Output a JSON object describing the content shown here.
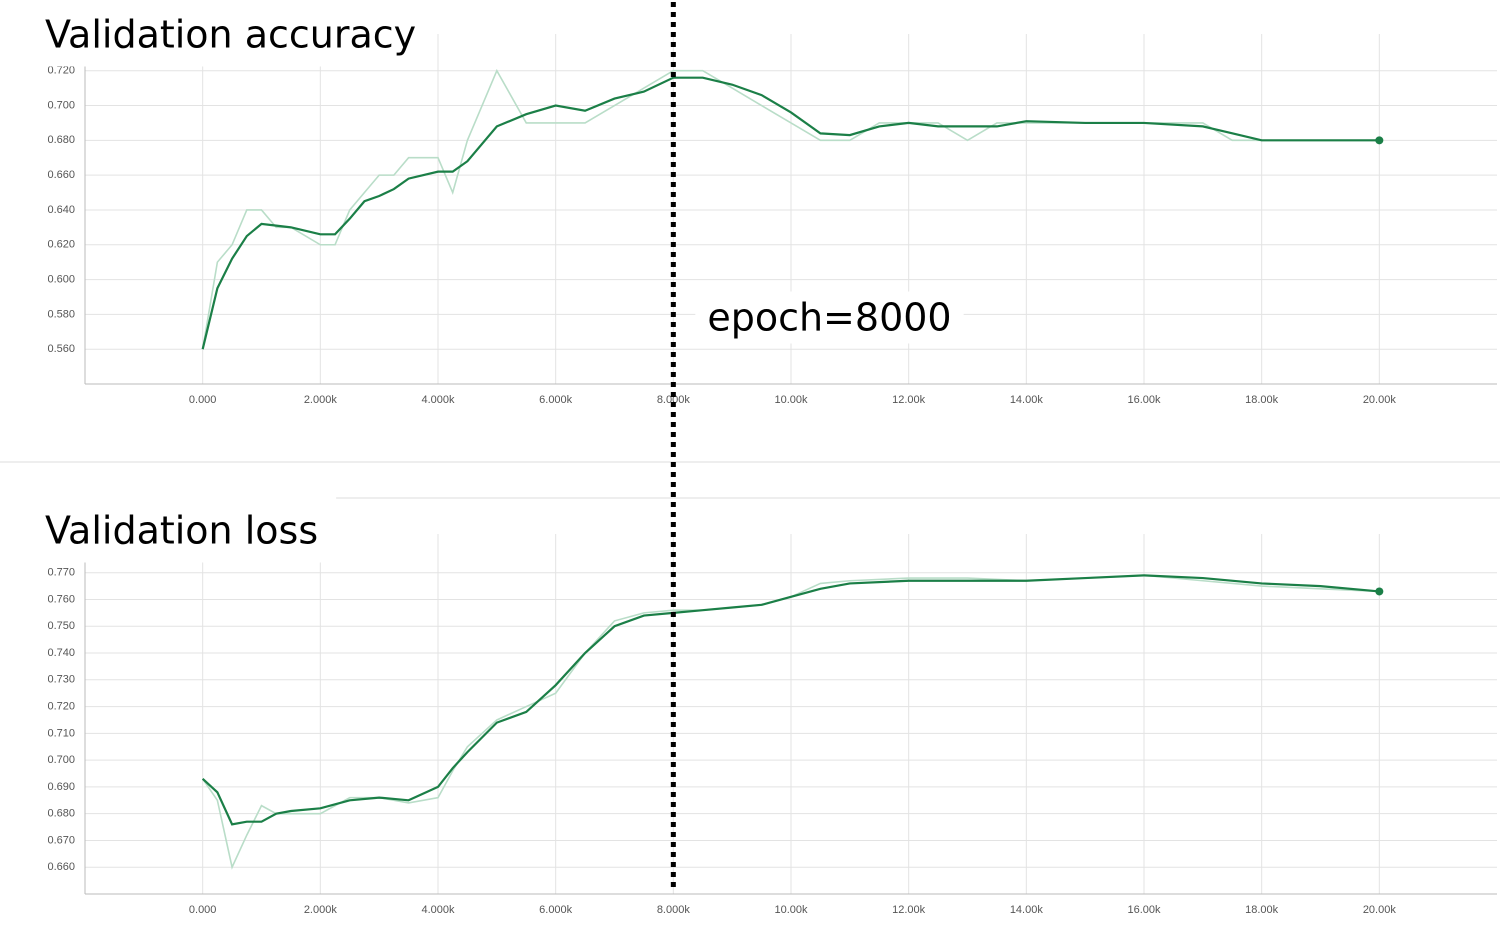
{
  "chart_data": [
    {
      "type": "line",
      "title": "Validation accuracy",
      "x": [
        0,
        250,
        500,
        750,
        1000,
        1250,
        1500,
        2000,
        2250,
        2500,
        2750,
        3000,
        3250,
        3500,
        4000,
        4250,
        4500,
        5000,
        5500,
        6000,
        6500,
        7000,
        7500,
        8000,
        8500,
        9000,
        9500,
        10000,
        10500,
        11000,
        11500,
        12000,
        12500,
        13000,
        13500,
        14000,
        15000,
        16000,
        17000,
        17500,
        18000,
        19000,
        20000
      ],
      "series": [
        {
          "color": "#b9ddc8",
          "values": [
            0.56,
            0.61,
            0.62,
            0.64,
            0.64,
            0.63,
            0.63,
            0.62,
            0.62,
            0.64,
            0.65,
            0.66,
            0.66,
            0.67,
            0.67,
            0.65,
            0.68,
            0.72,
            0.69,
            0.69,
            0.69,
            0.7,
            0.71,
            0.72,
            0.72,
            0.71,
            0.7,
            0.69,
            0.68,
            0.68,
            0.69,
            0.69,
            0.69,
            0.68,
            0.69,
            0.69,
            0.69,
            0.69,
            0.69,
            0.68,
            0.68,
            0.68,
            0.68
          ]
        },
        {
          "color": "#1b7f47",
          "values": [
            0.56,
            0.595,
            0.612,
            0.625,
            0.632,
            0.631,
            0.63,
            0.626,
            0.626,
            0.635,
            0.645,
            0.648,
            0.652,
            0.658,
            0.662,
            0.662,
            0.668,
            0.688,
            0.695,
            0.7,
            0.697,
            0.704,
            0.708,
            0.716,
            0.716,
            0.712,
            0.706,
            0.696,
            0.684,
            0.683,
            0.688,
            0.69,
            0.688,
            0.688,
            0.688,
            0.691,
            0.69,
            0.69,
            0.688,
            0.684,
            0.68,
            0.68,
            0.68
          ]
        }
      ],
      "xlim": [
        -2000,
        22000
      ],
      "xticks": [
        {
          "value": 0,
          "label": "0.000"
        },
        {
          "value": 2000,
          "label": "2.000k"
        },
        {
          "value": 4000,
          "label": "4.000k"
        },
        {
          "value": 6000,
          "label": "6.000k"
        },
        {
          "value": 8000,
          "label": "8.000k"
        },
        {
          "value": 10000,
          "label": "10.00k"
        },
        {
          "value": 12000,
          "label": "12.00k"
        },
        {
          "value": 14000,
          "label": "14.00k"
        },
        {
          "value": 16000,
          "label": "16.00k"
        },
        {
          "value": 18000,
          "label": "18.00k"
        },
        {
          "value": 20000,
          "label": "20.00k"
        }
      ],
      "ylim": [
        0.54,
        0.725
      ],
      "yticks": [
        {
          "value": 0.56,
          "label": "0.560"
        },
        {
          "value": 0.58,
          "label": "0.580"
        },
        {
          "value": 0.6,
          "label": "0.600"
        },
        {
          "value": 0.62,
          "label": "0.620"
        },
        {
          "value": 0.64,
          "label": "0.640"
        },
        {
          "value": 0.66,
          "label": "0.660"
        },
        {
          "value": 0.68,
          "label": "0.680"
        },
        {
          "value": 0.7,
          "label": "0.700"
        },
        {
          "value": 0.72,
          "label": "0.720"
        }
      ],
      "grid": true
    },
    {
      "type": "line",
      "title": "Validation loss",
      "x": [
        0,
        250,
        500,
        750,
        1000,
        1250,
        1500,
        2000,
        2500,
        3000,
        3500,
        4000,
        4250,
        4500,
        5000,
        5500,
        6000,
        6500,
        7000,
        7500,
        8000,
        8500,
        9000,
        9500,
        10000,
        10500,
        11000,
        12000,
        13000,
        14000,
        15000,
        16000,
        17000,
        18000,
        19000,
        20000
      ],
      "series": [
        {
          "color": "#b9ddc8",
          "values": [
            0.693,
            0.685,
            0.66,
            0.672,
            0.683,
            0.68,
            0.68,
            0.68,
            0.686,
            0.686,
            0.684,
            0.686,
            0.696,
            0.705,
            0.715,
            0.72,
            0.725,
            0.74,
            0.752,
            0.755,
            0.756,
            0.756,
            0.757,
            0.758,
            0.761,
            0.766,
            0.767,
            0.768,
            0.768,
            0.767,
            0.768,
            0.769,
            0.767,
            0.765,
            0.764,
            0.763
          ]
        },
        {
          "color": "#1b7f47",
          "values": [
            0.693,
            0.688,
            0.676,
            0.677,
            0.677,
            0.68,
            0.681,
            0.682,
            0.685,
            0.686,
            0.685,
            0.69,
            0.697,
            0.703,
            0.714,
            0.718,
            0.728,
            0.74,
            0.75,
            0.754,
            0.755,
            0.756,
            0.757,
            0.758,
            0.761,
            0.764,
            0.766,
            0.767,
            0.767,
            0.767,
            0.768,
            0.769,
            0.768,
            0.766,
            0.765,
            0.763
          ]
        }
      ],
      "xlim": [
        -2000,
        22000
      ],
      "xticks": [
        {
          "value": 0,
          "label": "0.000"
        },
        {
          "value": 2000,
          "label": "2.000k"
        },
        {
          "value": 4000,
          "label": "4.000k"
        },
        {
          "value": 6000,
          "label": "6.000k"
        },
        {
          "value": 8000,
          "label": "8.000k"
        },
        {
          "value": 10000,
          "label": "10.00k"
        },
        {
          "value": 12000,
          "label": "12.00k"
        },
        {
          "value": 14000,
          "label": "14.00k"
        },
        {
          "value": 16000,
          "label": "16.00k"
        },
        {
          "value": 18000,
          "label": "18.00k"
        },
        {
          "value": 20000,
          "label": "20.00k"
        }
      ],
      "ylim": [
        0.65,
        0.774
      ],
      "yticks": [
        {
          "value": 0.66,
          "label": "0.660"
        },
        {
          "value": 0.67,
          "label": "0.670"
        },
        {
          "value": 0.68,
          "label": "0.680"
        },
        {
          "value": 0.69,
          "label": "0.690"
        },
        {
          "value": 0.7,
          "label": "0.700"
        },
        {
          "value": 0.71,
          "label": "0.710"
        },
        {
          "value": 0.72,
          "label": "0.720"
        },
        {
          "value": 0.73,
          "label": "0.730"
        },
        {
          "value": 0.74,
          "label": "0.740"
        },
        {
          "value": 0.75,
          "label": "0.750"
        },
        {
          "value": 0.76,
          "label": "0.760"
        },
        {
          "value": 0.77,
          "label": "0.770"
        }
      ],
      "grid": true
    }
  ],
  "annotation": {
    "text": "epoch=8000",
    "x": 8000
  }
}
